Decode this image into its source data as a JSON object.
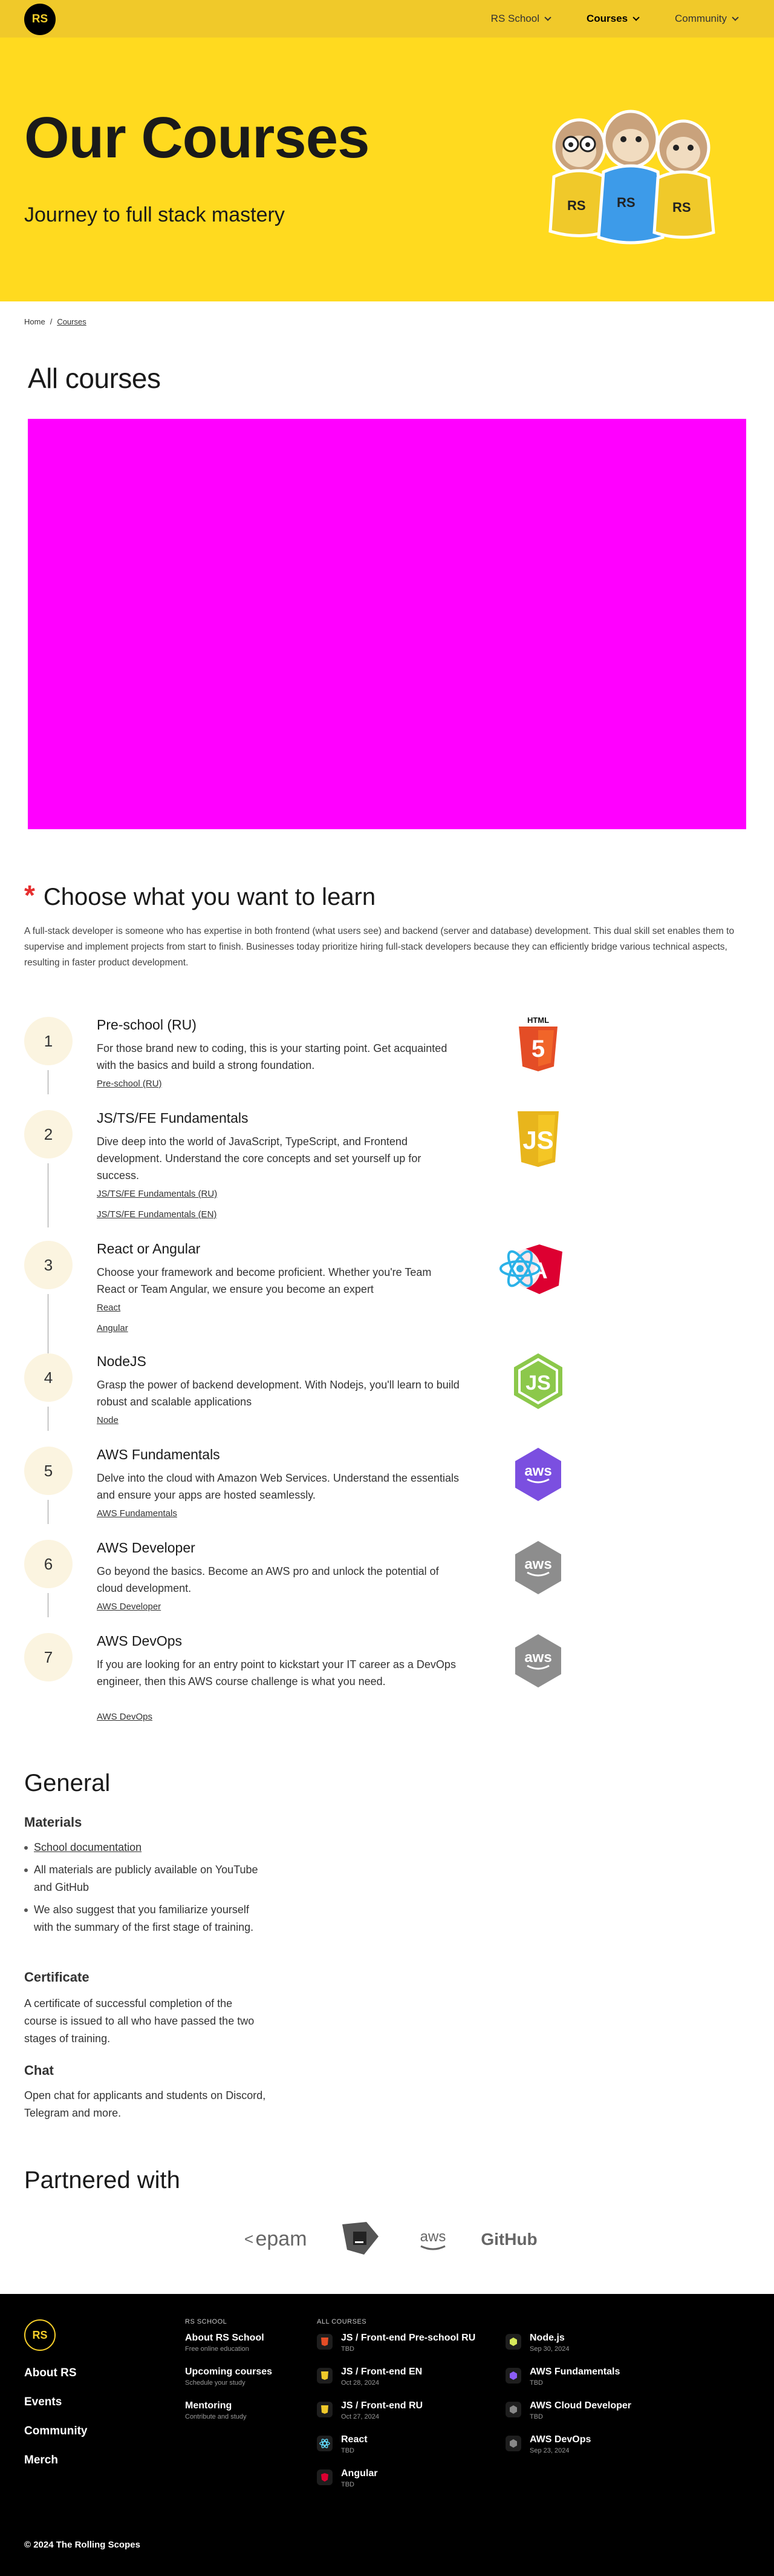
{
  "header": {
    "logo_text": "RS",
    "nav": [
      {
        "label": "RS School",
        "active": false
      },
      {
        "label": "Courses",
        "active": true
      },
      {
        "label": "Community",
        "active": false
      }
    ]
  },
  "hero": {
    "title": "Our Courses",
    "subtitle": "Journey to full stack mastery"
  },
  "breadcrumb": {
    "home": "Home",
    "separator": "/",
    "current": "Courses"
  },
  "all_courses": {
    "heading": "All courses",
    "video_color": "#ff00ff"
  },
  "choose": {
    "star": "*",
    "heading": "Choose what you want to learn",
    "description": "A full-stack developer is someone who has expertise in both frontend (what users see) and backend (server and database) development. This dual skill set enables them to supervise and implement projects from start to finish. Businesses today prioritize hiring full-stack developers because they can efficiently bridge various technical aspects, resulting in faster product development."
  },
  "courses": [
    {
      "number": "1",
      "title": "Pre-school (RU)",
      "description": "For those brand new to coding, this is your starting point. Get acquainted with the basics and build a strong foundation.",
      "links": [
        "Pre-school (RU)"
      ],
      "icon": "html5-icon"
    },
    {
      "number": "2",
      "title": "JS/TS/FE Fundamentals",
      "description": "Dive deep into the world of JavaScript, TypeScript, and Frontend development. Understand the core concepts and set yourself up for success.",
      "links": [
        "JS/TS/FE Fundamentals (RU)",
        "JS/TS/FE Fundamentals (EN)"
      ],
      "icon": "javascript-icon"
    },
    {
      "number": "3",
      "title": "React or Angular",
      "description": "Choose your framework and become proficient. Whether you're Team React or Team Angular, we ensure you become an expert",
      "links": [
        "React",
        "Angular"
      ],
      "icon": "react-angular-icon"
    },
    {
      "number": "4",
      "title": "NodeJS",
      "description": "Grasp the power of backend development. With Nodejs, you'll learn to build robust and scalable applications",
      "links": [
        "Node"
      ],
      "icon": "nodejs-icon"
    },
    {
      "number": "5",
      "title": "AWS Fundamentals",
      "description": "Delve into the cloud with Amazon Web Services. Understand the essentials and ensure your apps are hosted seamlessly.",
      "links": [
        "AWS Fundamentals"
      ],
      "icon": "aws-fundamentals-icon"
    },
    {
      "number": "6",
      "title": "AWS Developer",
      "description": "Go beyond the basics. Become an AWS pro and unlock the potential of cloud development.",
      "links": [
        "AWS Developer"
      ],
      "icon": "aws-developer-icon"
    },
    {
      "number": "7",
      "title": "AWS DevOps",
      "description": "If you are looking for an entry point to kickstart your IT career as a DevOps engineer, then this AWS course challenge is what you need.",
      "links": [
        "AWS DevOps"
      ],
      "icon": "aws-devops-icon"
    }
  ],
  "general": {
    "heading": "General",
    "materials_heading": "Materials",
    "materials": [
      "School documentation",
      "All materials are publicly available on YouTube and GitHub",
      "We also suggest that you familiarize yourself with the summary of the first stage of training."
    ],
    "certificate_heading": "Certificate",
    "certificate_text": "A certificate of successful completion of the course is issued to all who have passed the two stages of training.",
    "chat_heading": "Chat",
    "chat_text": "Open chat for applicants and students on Discord, Telegram and more."
  },
  "partners": {
    "heading": "Partnered with",
    "logos": [
      "epam",
      "jetbrains",
      "aws",
      "GitHub"
    ]
  },
  "footer": {
    "logo_text": "RS",
    "main_links": [
      "About RS",
      "Events",
      "Community",
      "Merch"
    ],
    "rs_school_heading": "RS SCHOOL",
    "rs_school_links": [
      {
        "title": "About RS School",
        "subtitle": "Free online education"
      },
      {
        "title": "Upcoming courses",
        "subtitle": "Schedule your study"
      },
      {
        "title": "Mentoring",
        "subtitle": "Contribute and study"
      }
    ],
    "all_courses_heading": "ALL COURSES",
    "courses_col1": [
      {
        "title": "JS / Front-end Pre-school RU",
        "date": "TBD",
        "icon": "html5-icon",
        "color": "#e44d26"
      },
      {
        "title": "JS / Front-end EN",
        "date": "Oct 28, 2024",
        "icon": "javascript-icon",
        "color": "#f7df1e"
      },
      {
        "title": "JS / Front-end RU",
        "date": "Oct 27, 2024",
        "icon": "javascript-icon",
        "color": "#f7df1e"
      },
      {
        "title": "React",
        "date": "TBD",
        "icon": "react-icon",
        "color": "#61dafb"
      },
      {
        "title": "Angular",
        "date": "TBD",
        "icon": "angular-icon",
        "color": "#dd0031"
      }
    ],
    "courses_col2": [
      {
        "title": "Node.js",
        "date": "Sep 30, 2024",
        "icon": "nodejs-icon",
        "color": "#8cc84b"
      },
      {
        "title": "AWS Fundamentals",
        "date": "TBD",
        "icon": "aws-icon",
        "color": "#8b5cf6"
      },
      {
        "title": "AWS Cloud Developer",
        "date": "TBD",
        "icon": "aws-icon",
        "color": "#888888"
      },
      {
        "title": "AWS DevOps",
        "date": "Sep 23, 2024",
        "icon": "aws-icon",
        "color": "#888888"
      }
    ],
    "copyright": "© 2024 The Rolling Scopes"
  },
  "colors": {
    "header": "#f0c92a",
    "hero": "#ffda1f",
    "accent_star": "#e62e2e",
    "footer": "#000000"
  }
}
